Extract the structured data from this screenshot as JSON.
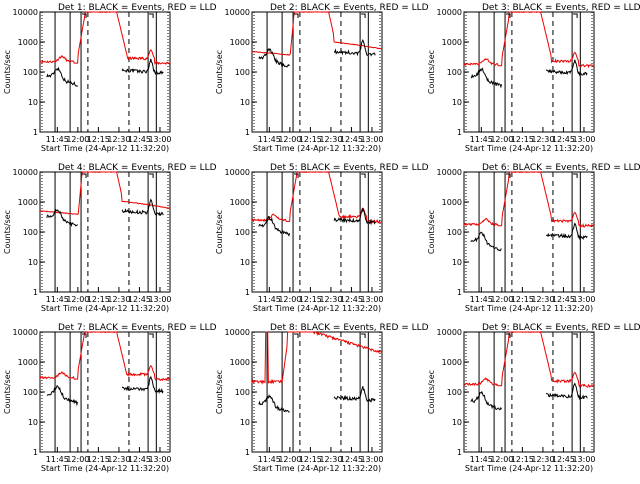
{
  "chart_data": {
    "type": "line",
    "x_ticks": [
      "11:45",
      "12:00",
      "12:15",
      "12:30",
      "12:45",
      "13:00"
    ],
    "y_ticks": [
      "1",
      "10",
      "100",
      "1000",
      "10000"
    ],
    "xlabel": "Start Time (24-Apr-12 11:32:20)",
    "ylabel": "Counts/sec",
    "y_scale": "log",
    "ylim": [
      1,
      10000
    ],
    "x_range_minutes_after_11_32": [
      0,
      95
    ],
    "colors": {
      "events": "#000000",
      "lld": "#ee0000"
    },
    "panels": [
      {
        "title": "Det 1: BLACK = Events, RED = LLD",
        "red_type": "a",
        "black_type": "a",
        "base": 220,
        "blackratio": 0.35
      },
      {
        "title": "Det 2: BLACK = Events, RED = LLD",
        "red_type": "b",
        "black_type": "b",
        "base": 400,
        "blackratio": 0.8
      },
      {
        "title": "Det 3: BLACK = Events, RED = LLD",
        "red_type": "a",
        "black_type": "a",
        "base": 180,
        "blackratio": 0.4
      },
      {
        "title": "Det 4: BLACK = Events, RED = LLD",
        "red_type": "b",
        "black_type": "b",
        "base": 420,
        "blackratio": 0.8
      },
      {
        "title": "Det 5: BLACK = Events, RED = LLD",
        "red_type": "c",
        "black_type": "c",
        "base": 250,
        "blackratio": 0.7
      },
      {
        "title": "Det 6: BLACK = Events, RED = LLD",
        "red_type": "a",
        "black_type": "a",
        "base": 180,
        "blackratio": 0.3
      },
      {
        "title": "Det 7: BLACK = Events, RED = LLD",
        "red_type": "a",
        "black_type": "a",
        "base": 300,
        "blackratio": 0.3
      },
      {
        "title": "Det 8: BLACK = Events, RED = LLD",
        "red_type": "d",
        "black_type": "d",
        "base": 220,
        "blackratio": 0.2
      },
      {
        "title": "Det 9: BLACK = Events, RED = LLD",
        "red_type": "a",
        "black_type": "a",
        "base": 180,
        "blackratio": 0.3
      }
    ],
    "solid_vlines_minutes": [
      11,
      22,
      30,
      79,
      85
    ],
    "dashed_vlines_minutes": [
      35,
      65,
      95
    ],
    "dotted_vlines_minutes": [
      0,
      95
    ]
  }
}
